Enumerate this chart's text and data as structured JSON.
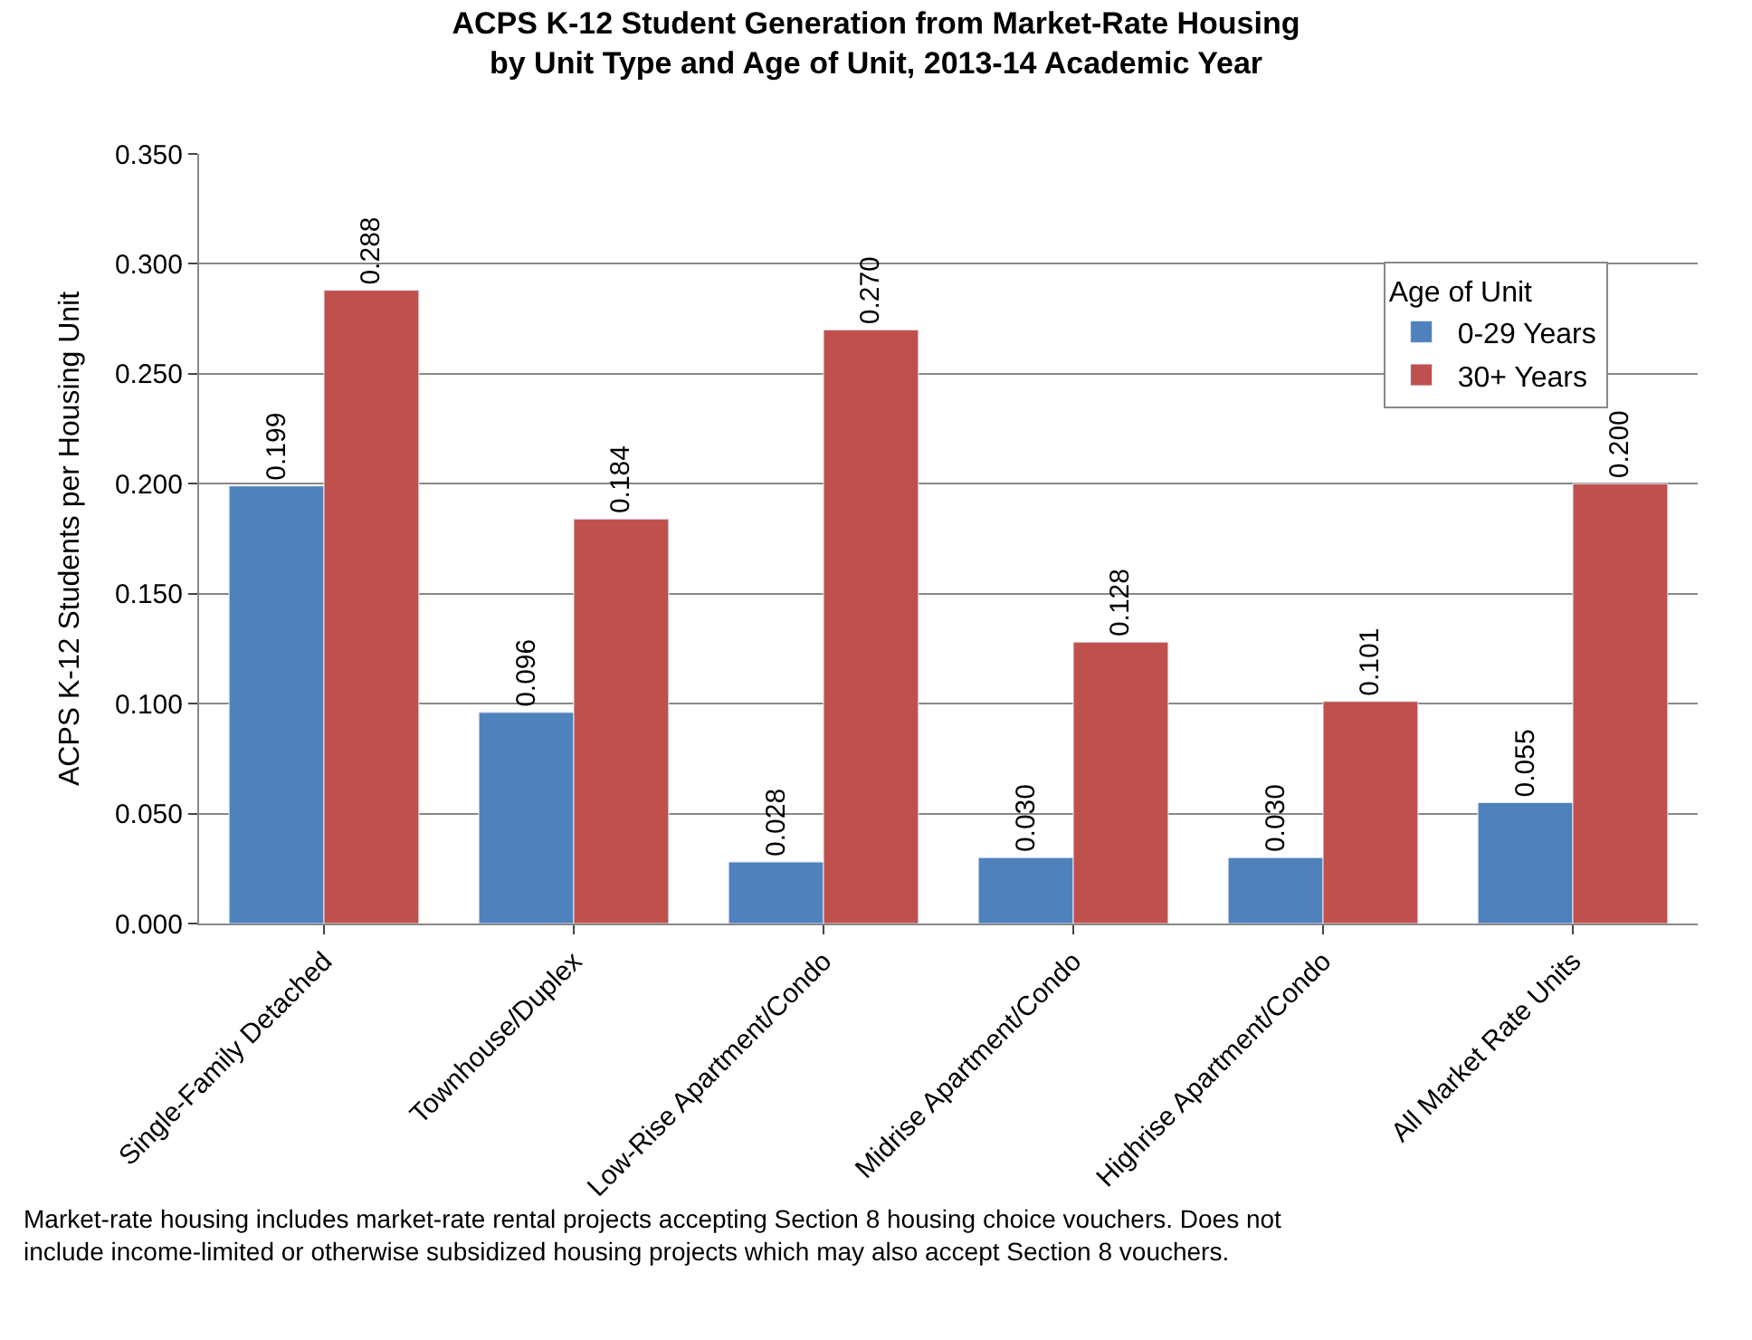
{
  "chart_data": {
    "type": "bar",
    "title": "ACPS K-12 Student Generation from Market-Rate Housing\nby Unit Type and Age of Unit, 2013-14 Academic Year",
    "ylabel": "ACPS K-12 Students per Housing Unit",
    "legend_title": "Age of Unit",
    "categories": [
      "Single-Family Detached",
      "Townhouse/Duplex",
      "Low-Rise Apartment/Condo",
      "Midrise Apartment/Condo",
      "Highrise Apartment/Condo",
      "All Market Rate Units"
    ],
    "series": [
      {
        "name": "0-29 Years",
        "color": "#4f81bd",
        "values": [
          0.199,
          0.096,
          0.028,
          0.03,
          0.03,
          0.055
        ],
        "value_labels": [
          "0.199",
          "0.096",
          "0.028",
          "0.030",
          "0.030",
          "0.055"
        ]
      },
      {
        "name": "30+ Years",
        "color": "#c0504d",
        "values": [
          0.288,
          0.184,
          0.27,
          0.128,
          0.101,
          0.2
        ],
        "value_labels": [
          "0.288",
          "0.184",
          "0.270",
          "0.128",
          "0.101",
          "0.200"
        ]
      }
    ],
    "ylim": [
      0,
      0.35
    ],
    "yticks": [
      {
        "value": 0,
        "label": "0.000"
      },
      {
        "value": 0.05,
        "label": "0.050"
      },
      {
        "value": 0.1,
        "label": "0.100"
      },
      {
        "value": 0.15,
        "label": "0.150"
      },
      {
        "value": 0.2,
        "label": "0.200"
      },
      {
        "value": 0.25,
        "label": "0.250"
      },
      {
        "value": 0.3,
        "label": "0.300"
      },
      {
        "value": 0.35,
        "label": "0.350"
      }
    ],
    "grid": "y",
    "legend": "top right",
    "annotations": [
      "Market-rate housing includes market-rate rental projects accepting Section 8 housing choice vouchers. Does not\ninclude income-limited or otherwise subsidized housing projects which may also accept Section 8 vouchers."
    ]
  }
}
